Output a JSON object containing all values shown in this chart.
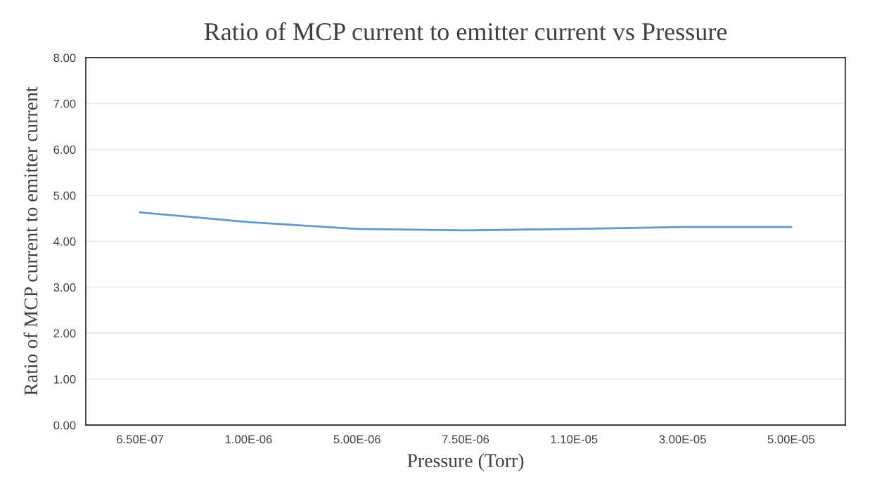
{
  "chart_data": {
    "type": "line",
    "title": "Ratio of MCP current to emitter current vs Pressure",
    "xlabel": "Pressure (Torr)",
    "ylabel": "Ratio of MCP current to emitter current",
    "categories": [
      "6.50E-07",
      "1.00E-06",
      "5.00E-06",
      "7.50E-06",
      "1.10E-05",
      "3.00E-05",
      "5.00E-05"
    ],
    "series": [
      {
        "color": "#5b9bd5",
        "values": [
          4.63,
          4.42,
          4.27,
          4.24,
          4.27,
          4.31,
          4.31
        ]
      }
    ],
    "ylim": [
      0,
      8
    ],
    "yticks": [
      {
        "value": 0,
        "label": "0.00"
      },
      {
        "value": 1,
        "label": "1.00"
      },
      {
        "value": 2,
        "label": "2.00"
      },
      {
        "value": 3,
        "label": "3.00"
      },
      {
        "value": 4,
        "label": "4.00"
      },
      {
        "value": 5,
        "label": "5.00"
      },
      {
        "value": 6,
        "label": "6.00"
      },
      {
        "value": 7,
        "label": "7.00"
      },
      {
        "value": 8,
        "label": "8.00"
      }
    ],
    "grid": "y",
    "marker": "none",
    "line_style": "solid"
  }
}
